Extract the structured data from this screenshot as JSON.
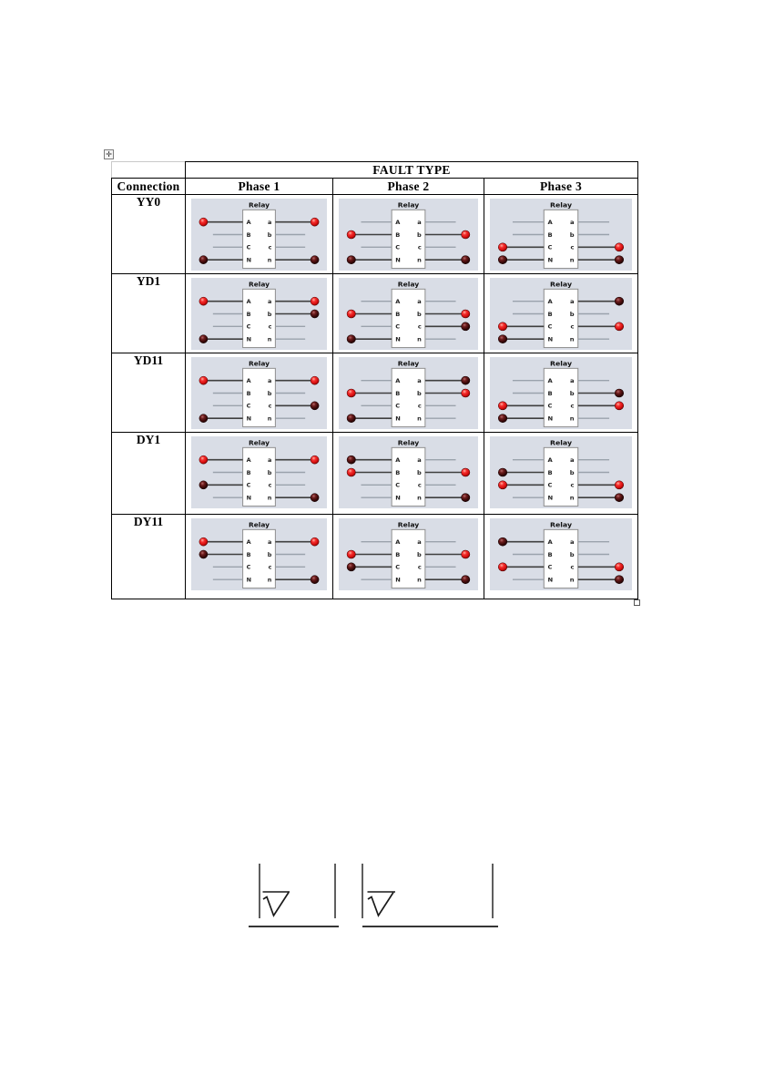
{
  "table": {
    "header": {
      "fault_type": "FAULT TYPE",
      "connection": "Connection",
      "phases": [
        "Phase 1",
        "Phase 2",
        "Phase 3"
      ]
    },
    "relay_label": "Relay",
    "terminals": {
      "left": [
        "A",
        "B",
        "C",
        "N"
      ],
      "right": [
        "a",
        "b",
        "c",
        "n"
      ]
    },
    "colors": {
      "diagram_background": "#d9dde6",
      "led_red": "#e31212",
      "led_dark": "#3c0a0a",
      "line_active": "#3f3f3f",
      "line_idle": "#9aa2ac",
      "relay_box_border": "#8f8f8f"
    },
    "rows": [
      {
        "connection": "YY0",
        "cells": [
          {
            "left": [
              "red",
              "",
              "",
              "dark"
            ],
            "right": [
              "red",
              "",
              "",
              "dark"
            ]
          },
          {
            "left": [
              "",
              "red",
              "",
              "dark"
            ],
            "right": [
              "",
              "red",
              "",
              "dark"
            ]
          },
          {
            "left": [
              "",
              "",
              "red",
              "dark"
            ],
            "right": [
              "",
              "",
              "red",
              "dark"
            ]
          }
        ]
      },
      {
        "connection": "YD1",
        "cells": [
          {
            "left": [
              "red",
              "",
              "",
              "dark"
            ],
            "right": [
              "red",
              "dark",
              "",
              ""
            ]
          },
          {
            "left": [
              "",
              "red",
              "",
              "dark"
            ],
            "right": [
              "",
              "red",
              "dark",
              ""
            ]
          },
          {
            "left": [
              "",
              "",
              "red",
              "dark"
            ],
            "right": [
              "dark",
              "",
              "red",
              ""
            ]
          }
        ]
      },
      {
        "connection": "YD11",
        "cells": [
          {
            "left": [
              "red",
              "",
              "",
              "dark"
            ],
            "right": [
              "red",
              "",
              "dark",
              ""
            ]
          },
          {
            "left": [
              "",
              "red",
              "",
              "dark"
            ],
            "right": [
              "dark",
              "red",
              "",
              ""
            ]
          },
          {
            "left": [
              "",
              "",
              "red",
              "dark"
            ],
            "right": [
              "",
              "dark",
              "red",
              ""
            ]
          }
        ]
      },
      {
        "connection": "DY1",
        "cells": [
          {
            "left": [
              "red",
              "",
              "dark",
              ""
            ],
            "right": [
              "red",
              "",
              "",
              "dark"
            ]
          },
          {
            "left": [
              "dark",
              "red",
              "",
              ""
            ],
            "right": [
              "",
              "red",
              "",
              "dark"
            ]
          },
          {
            "left": [
              "",
              "dark",
              "red",
              ""
            ],
            "right": [
              "",
              "",
              "red",
              "dark"
            ]
          }
        ]
      },
      {
        "connection": "DY11",
        "cells": [
          {
            "left": [
              "red",
              "dark",
              "",
              ""
            ],
            "right": [
              "red",
              "",
              "",
              "dark"
            ]
          },
          {
            "left": [
              "",
              "red",
              "dark",
              ""
            ],
            "right": [
              "",
              "red",
              "",
              "dark"
            ]
          },
          {
            "left": [
              "dark",
              "",
              "red",
              ""
            ],
            "right": [
              "",
              "",
              "red",
              "dark"
            ]
          }
        ]
      }
    ]
  },
  "formulas": {
    "radical_symbol": "√"
  },
  "handles": {
    "move_glyph": "✛"
  }
}
